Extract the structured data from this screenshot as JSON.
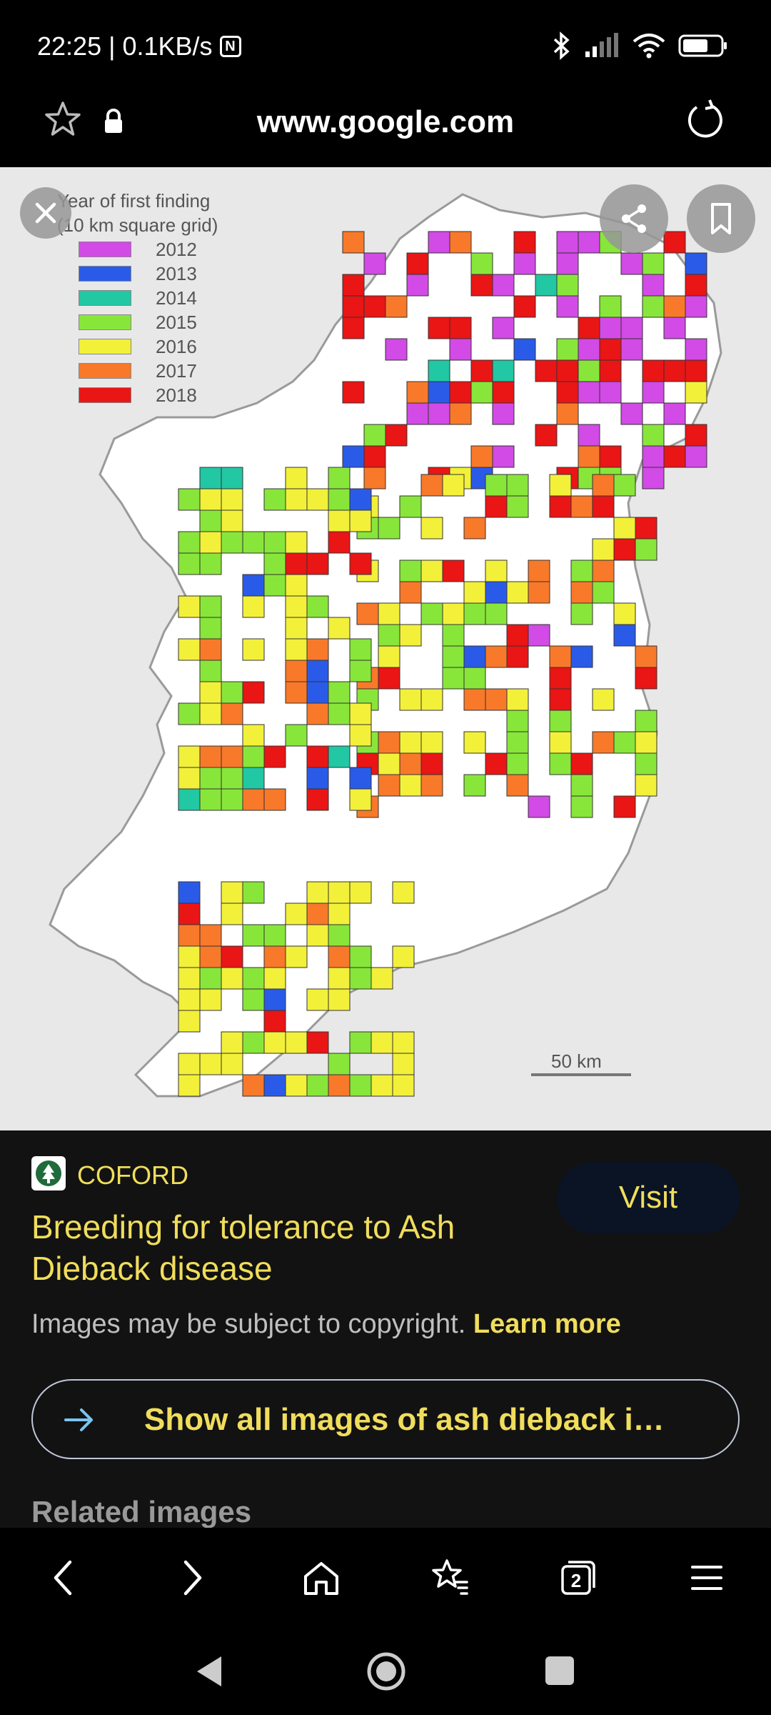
{
  "status": {
    "time": "22:25",
    "speed": "0.1KB/s",
    "nfc": "N"
  },
  "url_bar": {
    "url": "www.google.com"
  },
  "image": {
    "legend_title_1": "Year of first finding",
    "legend_title_2": "(10 km square grid)",
    "legend": [
      {
        "year": "2012",
        "color": "#d24be6"
      },
      {
        "year": "2013",
        "color": "#2a5be8"
      },
      {
        "year": "2014",
        "color": "#22c7a4"
      },
      {
        "year": "2015",
        "color": "#88e63a"
      },
      {
        "year": "2016",
        "color": "#f3f03a"
      },
      {
        "year": "2017",
        "color": "#f8792a"
      },
      {
        "year": "2018",
        "color": "#ea1515"
      }
    ],
    "scale_label": "50 km"
  },
  "info": {
    "source": "COFORD",
    "visit_label": "Visit",
    "title": "Breeding for tolerance to Ash Dieback disease",
    "copyright_text": "Images may be subject to copyright.",
    "learn_more": "Learn more",
    "show_all_label": "Show all images of ash dieback i…",
    "related_heading": "Related images"
  },
  "icons": {
    "close": "close-icon",
    "share": "share-icon",
    "bookmark": "bookmark-icon",
    "back": "chevron-left-icon",
    "forward": "chevron-right-icon",
    "home": "home-icon",
    "favorites": "star-list-icon",
    "tabs": "tabs-icon",
    "menu": "menu-icon"
  },
  "bottom_nav": {
    "tab_count": "2"
  }
}
